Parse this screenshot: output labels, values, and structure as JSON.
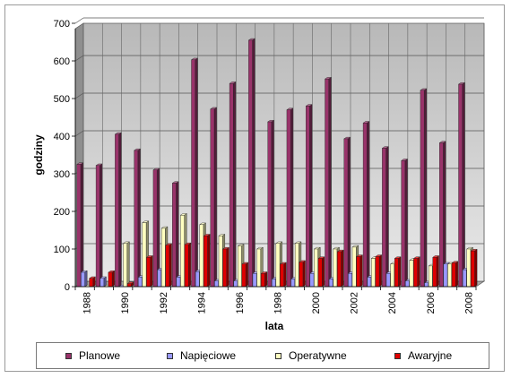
{
  "chart_data": {
    "type": "bar",
    "title": "",
    "xlabel": "lata",
    "ylabel": "godziny",
    "ylim": [
      0,
      700
    ],
    "yticks": [
      0,
      100,
      200,
      300,
      400,
      500,
      600,
      700
    ],
    "grid": true,
    "legend_position": "bottom",
    "categories": [
      "1988",
      "1989",
      "1990",
      "1991",
      "1992",
      "1993",
      "1994",
      "1995",
      "1996",
      "1997",
      "1998",
      "1999",
      "2000",
      "2001",
      "2002",
      "2003",
      "2004",
      "2005",
      "2006",
      "2007",
      "2008"
    ],
    "x_tick_labels": [
      "1988",
      "1990",
      "1992",
      "1994",
      "1996",
      "1998",
      "2000",
      "2002",
      "2004",
      "2006",
      "2008"
    ],
    "series": [
      {
        "name": "Planowe",
        "color": "#99336a",
        "values": [
          325,
          322,
          405,
          362,
          310,
          275,
          603,
          472,
          540,
          655,
          438,
          470,
          480,
          552,
          393,
          435,
          368,
          335,
          522,
          382,
          538
        ]
      },
      {
        "name": "Napięciowe",
        "color": "#9999ff",
        "values": [
          38,
          22,
          0,
          25,
          45,
          25,
          40,
          15,
          15,
          35,
          20,
          20,
          35,
          20,
          35,
          25,
          35,
          15,
          10,
          60,
          45
        ]
      },
      {
        "name": "Operatywne",
        "color": "#ffffc0",
        "values": [
          0,
          0,
          115,
          170,
          155,
          190,
          165,
          135,
          108,
          100,
          115,
          115,
          100,
          100,
          105,
          75,
          60,
          70,
          55,
          60,
          100
        ]
      },
      {
        "name": "Awaryjne",
        "color": "#e00000",
        "values": [
          22,
          38,
          8,
          78,
          110,
          112,
          135,
          100,
          60,
          35,
          60,
          65,
          75,
          93,
          80,
          80,
          75,
          75,
          78,
          63,
          95
        ]
      }
    ]
  }
}
